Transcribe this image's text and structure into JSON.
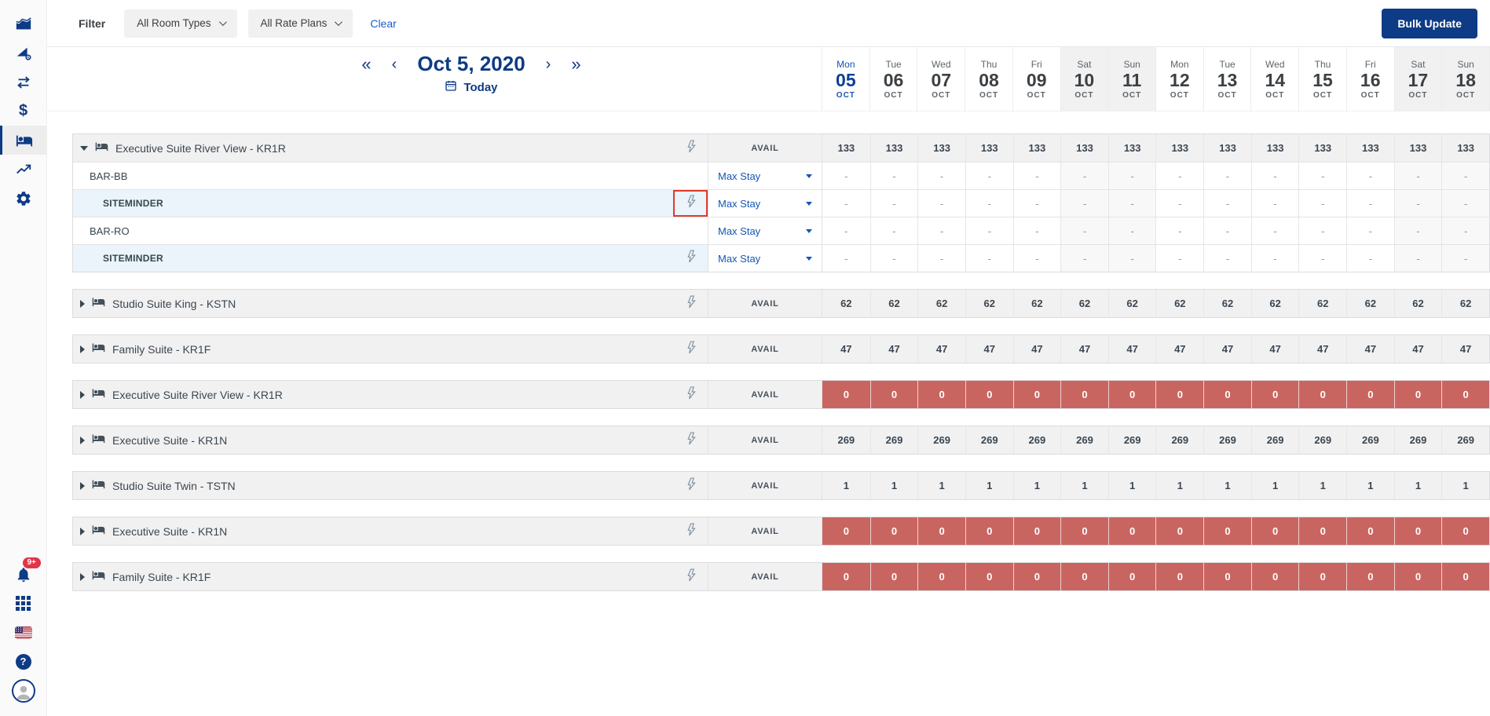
{
  "filter_bar": {
    "label": "Filter",
    "room_types_value": "All Room Types",
    "rate_plans_value": "All Rate Plans",
    "clear_label": "Clear",
    "bulk_update_label": "Bulk Update"
  },
  "date_nav": {
    "date": "Oct 5, 2020",
    "today_label": "Today"
  },
  "labels": {
    "avail": "AVAIL",
    "max_stay": "Max Stay"
  },
  "sidebar": {
    "notification_badge": "9+"
  },
  "colors": {
    "brand_navy": "#0e3b85",
    "link_blue": "#1556b5",
    "zero_cell_red": "#c96561",
    "highlight_box_red": "#e0392c",
    "badge_red": "#e2344a",
    "row_gray": "#f1f1f2",
    "siteminder_row_blue": "#eaf4fa"
  },
  "calendar": {
    "days": [
      {
        "dow": "Mon",
        "num": "05",
        "month": "OCT",
        "today": true,
        "weekend": false
      },
      {
        "dow": "Tue",
        "num": "06",
        "month": "OCT",
        "today": false,
        "weekend": false
      },
      {
        "dow": "Wed",
        "num": "07",
        "month": "OCT",
        "today": false,
        "weekend": false
      },
      {
        "dow": "Thu",
        "num": "08",
        "month": "OCT",
        "today": false,
        "weekend": false
      },
      {
        "dow": "Fri",
        "num": "09",
        "month": "OCT",
        "today": false,
        "weekend": false
      },
      {
        "dow": "Sat",
        "num": "10",
        "month": "OCT",
        "today": false,
        "weekend": true
      },
      {
        "dow": "Sun",
        "num": "11",
        "month": "OCT",
        "today": false,
        "weekend": true
      },
      {
        "dow": "Mon",
        "num": "12",
        "month": "OCT",
        "today": false,
        "weekend": false
      },
      {
        "dow": "Tue",
        "num": "13",
        "month": "OCT",
        "today": false,
        "weekend": false
      },
      {
        "dow": "Wed",
        "num": "14",
        "month": "OCT",
        "today": false,
        "weekend": false
      },
      {
        "dow": "Thu",
        "num": "15",
        "month": "OCT",
        "today": false,
        "weekend": false
      },
      {
        "dow": "Fri",
        "num": "16",
        "month": "OCT",
        "today": false,
        "weekend": false
      },
      {
        "dow": "Sat",
        "num": "17",
        "month": "OCT",
        "today": false,
        "weekend": true
      },
      {
        "dow": "Sun",
        "num": "18",
        "month": "OCT",
        "today": false,
        "weekend": true
      }
    ]
  },
  "groups": [
    {
      "name": "Executive Suite River View - KR1R",
      "expanded": true,
      "status": "normal",
      "values": [
        "133",
        "133",
        "133",
        "133",
        "133",
        "133",
        "133",
        "133",
        "133",
        "133",
        "133",
        "133",
        "133",
        "133"
      ],
      "rate_plans": [
        {
          "name": "BAR-BB",
          "level": 1,
          "bolt": false,
          "highlight": false,
          "values": [
            "-",
            "-",
            "-",
            "-",
            "-",
            "-",
            "-",
            "-",
            "-",
            "-",
            "-",
            "-",
            "-",
            "-"
          ]
        },
        {
          "name": "SITEMINDER",
          "level": 2,
          "bolt": true,
          "highlight": true,
          "values": [
            "-",
            "-",
            "-",
            "-",
            "-",
            "-",
            "-",
            "-",
            "-",
            "-",
            "-",
            "-",
            "-",
            "-"
          ]
        },
        {
          "name": "BAR-RO",
          "level": 1,
          "bolt": false,
          "highlight": false,
          "values": [
            "-",
            "-",
            "-",
            "-",
            "-",
            "-",
            "-",
            "-",
            "-",
            "-",
            "-",
            "-",
            "-",
            "-"
          ]
        },
        {
          "name": "SITEMINDER",
          "level": 2,
          "bolt": true,
          "highlight": false,
          "values": [
            "-",
            "-",
            "-",
            "-",
            "-",
            "-",
            "-",
            "-",
            "-",
            "-",
            "-",
            "-",
            "-",
            "-"
          ]
        }
      ]
    },
    {
      "name": "Studio Suite King - KSTN",
      "expanded": false,
      "status": "normal",
      "values": [
        "62",
        "62",
        "62",
        "62",
        "62",
        "62",
        "62",
        "62",
        "62",
        "62",
        "62",
        "62",
        "62",
        "62"
      ],
      "rate_plans": []
    },
    {
      "name": "Family Suite - KR1F",
      "expanded": false,
      "status": "normal",
      "values": [
        "47",
        "47",
        "47",
        "47",
        "47",
        "47",
        "47",
        "47",
        "47",
        "47",
        "47",
        "47",
        "47",
        "47"
      ],
      "rate_plans": []
    },
    {
      "name": "Executive Suite River View - KR1R",
      "expanded": false,
      "status": "zero",
      "values": [
        "0",
        "0",
        "0",
        "0",
        "0",
        "0",
        "0",
        "0",
        "0",
        "0",
        "0",
        "0",
        "0",
        "0"
      ],
      "rate_plans": []
    },
    {
      "name": "Executive Suite - KR1N",
      "expanded": false,
      "status": "normal",
      "values": [
        "269",
        "269",
        "269",
        "269",
        "269",
        "269",
        "269",
        "269",
        "269",
        "269",
        "269",
        "269",
        "269",
        "269"
      ],
      "rate_plans": []
    },
    {
      "name": "Studio Suite Twin - TSTN",
      "expanded": false,
      "status": "normal",
      "values": [
        "1",
        "1",
        "1",
        "1",
        "1",
        "1",
        "1",
        "1",
        "1",
        "1",
        "1",
        "1",
        "1",
        "1"
      ],
      "rate_plans": []
    },
    {
      "name": "Executive Suite - KR1N",
      "expanded": false,
      "status": "zero",
      "values": [
        "0",
        "0",
        "0",
        "0",
        "0",
        "0",
        "0",
        "0",
        "0",
        "0",
        "0",
        "0",
        "0",
        "0"
      ],
      "rate_plans": []
    },
    {
      "name": "Family Suite - KR1F",
      "expanded": false,
      "status": "zero",
      "values": [
        "0",
        "0",
        "0",
        "0",
        "0",
        "0",
        "0",
        "0",
        "0",
        "0",
        "0",
        "0",
        "0",
        "0"
      ],
      "rate_plans": []
    }
  ]
}
